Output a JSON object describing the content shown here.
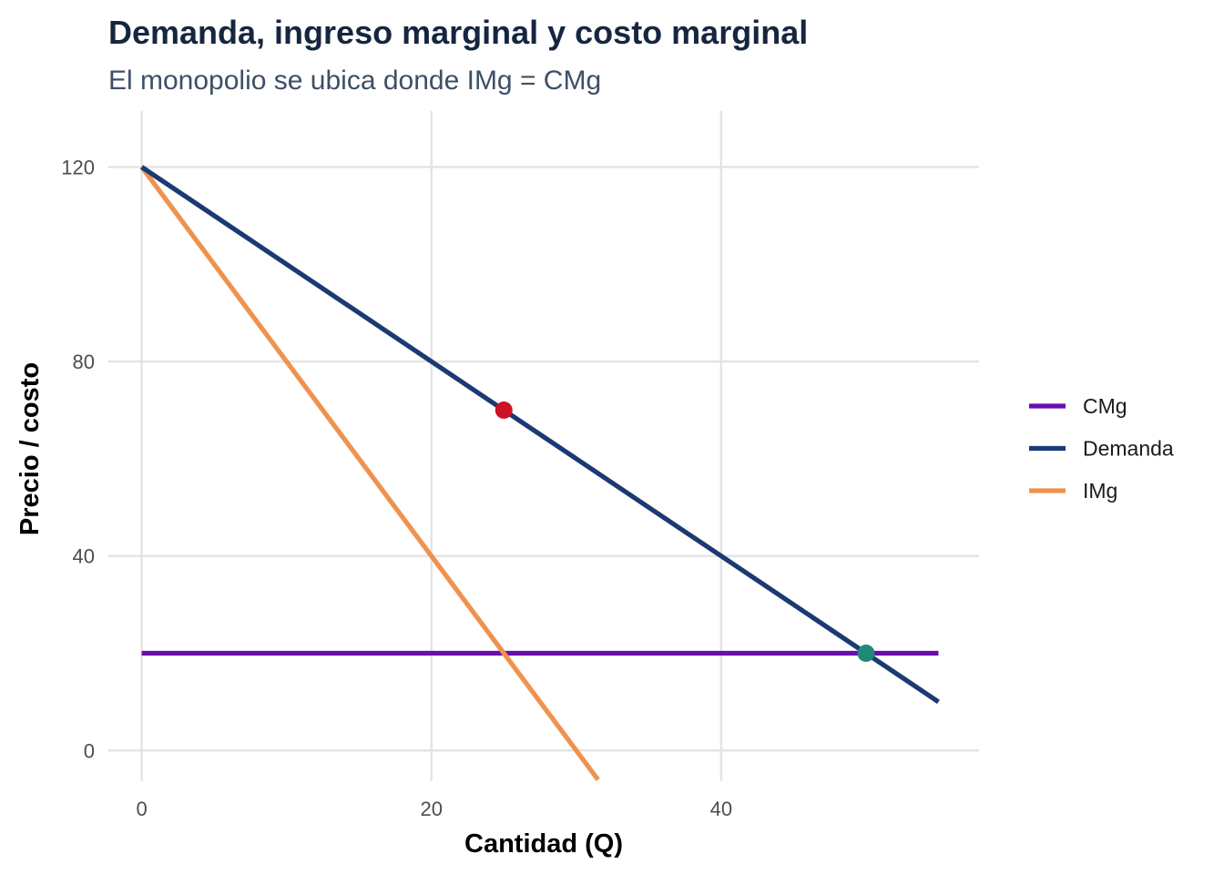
{
  "chart_data": {
    "type": "line",
    "title": "Demanda, ingreso marginal y costo marginal",
    "subtitle": "El monopolio se ubica donde IMg = CMg",
    "xlabel": "Cantidad (Q)",
    "ylabel": "Precio / costo",
    "xlim": [
      -2.3,
      57.8
    ],
    "ylim": [
      -6.3,
      131.5
    ],
    "x_ticks": [
      0,
      20,
      40
    ],
    "y_ticks": [
      0,
      40,
      80,
      120
    ],
    "grid": true,
    "legend_position": "right",
    "series": [
      {
        "name": "CMg",
        "color": "#6a0dad",
        "x": [
          0,
          55
        ],
        "y": [
          20,
          20
        ]
      },
      {
        "name": "Demanda",
        "color": "#1b3a73",
        "x": [
          0,
          55
        ],
        "y": [
          120,
          10
        ]
      },
      {
        "name": "IMg",
        "color": "#f0924f",
        "x": [
          0,
          31.5
        ],
        "y": [
          120,
          -6
        ]
      }
    ],
    "points": [
      {
        "x": 25,
        "y": 70,
        "color": "#cc1122"
      },
      {
        "x": 50,
        "y": 20,
        "color": "#1f8a78"
      }
    ]
  }
}
